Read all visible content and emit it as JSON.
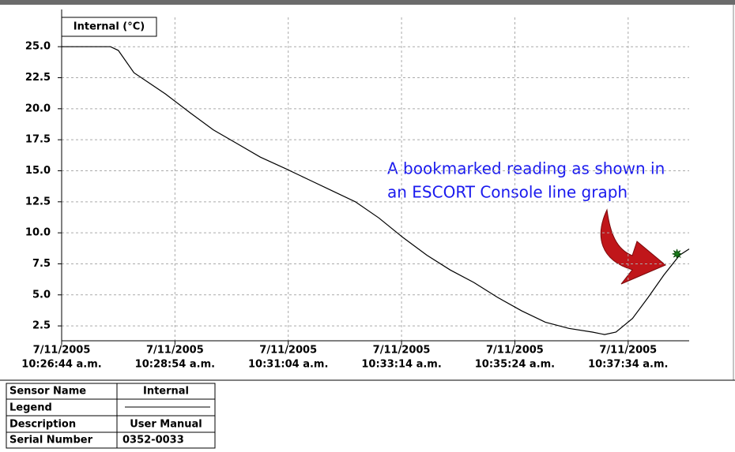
{
  "chart_data": {
    "type": "line",
    "series": [
      {
        "name": "Internal (°C)",
        "color": "#000000",
        "x": [
          "10:26:44",
          "10:27:40",
          "10:27:49",
          "10:28:07",
          "10:28:26",
          "10:28:43",
          "10:29:11",
          "10:29:38",
          "10:30:05",
          "10:30:32",
          "10:31:00",
          "10:31:27",
          "10:31:54",
          "10:32:21",
          "10:32:48",
          "10:33:16",
          "10:33:43",
          "10:34:10",
          "10:34:37",
          "10:35:04",
          "10:35:32",
          "10:35:59",
          "10:36:26",
          "10:36:53",
          "10:37:07",
          "10:37:20",
          "10:37:39",
          "10:37:57",
          "10:38:15",
          "10:38:33",
          "10:38:44"
        ],
        "values": [
          25.0,
          25.0,
          24.7,
          22.9,
          22.0,
          21.2,
          19.7,
          18.3,
          17.2,
          16.1,
          15.2,
          14.3,
          13.4,
          12.5,
          11.2,
          9.6,
          8.2,
          7.0,
          6.0,
          4.8,
          3.7,
          2.8,
          2.3,
          2.0,
          1.8,
          2.0,
          3.1,
          4.8,
          6.6,
          8.2,
          8.7
        ]
      }
    ],
    "bookmark": {
      "x": "10:38:30",
      "value": 8.3,
      "color": "#1a7a1a"
    },
    "annotation": [
      "A bookmarked reading as shown in",
      "an ESCORT Console line graph"
    ],
    "xlim": [
      "10:26:44",
      "10:38:44"
    ],
    "xticks": [
      {
        "value": "10:26:44",
        "label": [
          "7/11/2005",
          "10:26:44 a.m."
        ]
      },
      {
        "value": "10:28:54",
        "label": [
          "7/11/2005",
          "10:28:54 a.m."
        ]
      },
      {
        "value": "10:31:04",
        "label": [
          "7/11/2005",
          "10:31:04 a.m."
        ]
      },
      {
        "value": "10:33:14",
        "label": [
          "7/11/2005",
          "10:33:14 a.m."
        ]
      },
      {
        "value": "10:35:24",
        "label": [
          "7/11/2005",
          "10:35:24 a.m."
        ]
      },
      {
        "value": "10:37:34",
        "label": [
          "7/11/2005",
          "10:37:34 a.m."
        ]
      }
    ],
    "ylim": [
      1.3,
      28.0
    ],
    "yticks": [
      2.5,
      {
        "value": 5,
        "label": "5.0"
      },
      7.5,
      {
        "value": 10,
        "label": "10.0"
      },
      12.5,
      {
        "value": 15,
        "label": "15.0"
      },
      17.5,
      {
        "value": 20,
        "label": "20.0"
      },
      22.5,
      {
        "value": 25,
        "label": "25.0"
      }
    ],
    "grid": true
  },
  "table": {
    "rows": [
      [
        "Sensor Name",
        "Internal"
      ],
      [
        "Legend"
      ],
      [
        "Description",
        "User Manual"
      ],
      [
        "Serial Number",
        "0352-0033"
      ]
    ]
  }
}
